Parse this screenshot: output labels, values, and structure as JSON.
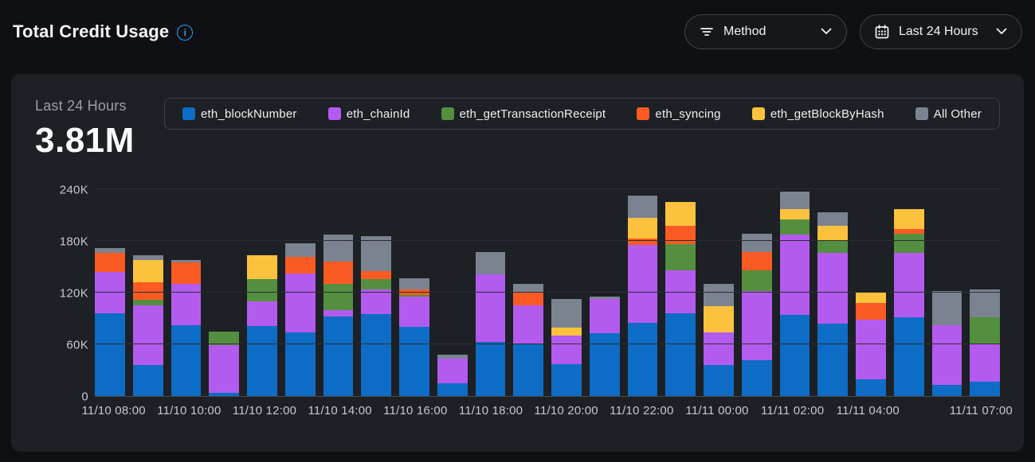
{
  "header": {
    "title": "Total Credit Usage"
  },
  "controls": {
    "method_button": {
      "label": "Method",
      "icon": "filter-icon"
    },
    "range_button": {
      "label": "Last 24 Hours",
      "icon": "calendar-icon"
    }
  },
  "summary": {
    "period": "Last 24 Hours",
    "total": "3.81M"
  },
  "colors": {
    "page_bg": "#0f1013",
    "card_bg": "#1d2025",
    "accent_info": "#2aa3ef",
    "axis_text": "#c6c8cc",
    "muted_text": "#9aa0a8"
  },
  "chart_data": {
    "type": "bar",
    "stacked": true,
    "title": "Total Credit Usage - Last 24 Hours",
    "xlabel": "",
    "ylabel": "",
    "unit": "credits (values in thousands)",
    "ylim": [
      0,
      240000
    ],
    "grid": true,
    "legend_position": "top",
    "yticks": [
      {
        "value": 0,
        "label": "0"
      },
      {
        "value": 60,
        "label": "60K"
      },
      {
        "value": 120,
        "label": "120K"
      },
      {
        "value": 180,
        "label": "180K"
      },
      {
        "value": 240,
        "label": "240K"
      }
    ],
    "xticks": [
      {
        "i": 0,
        "label": "11/10 08:00"
      },
      {
        "i": 2,
        "label": "11/10 10:00"
      },
      {
        "i": 4,
        "label": "11/10 12:00"
      },
      {
        "i": 6,
        "label": "11/10 14:00"
      },
      {
        "i": 8,
        "label": "11/10 16:00"
      },
      {
        "i": 10,
        "label": "11/10 18:00"
      },
      {
        "i": 12,
        "label": "11/10 20:00"
      },
      {
        "i": 14,
        "label": "11/10 22:00"
      },
      {
        "i": 16,
        "label": "11/11 00:00"
      },
      {
        "i": 18,
        "label": "11/11 02:00"
      },
      {
        "i": 20,
        "label": "11/11 04:00"
      },
      {
        "i": 23,
        "label": "11/11 07:00"
      }
    ],
    "n_bars": 24,
    "series": [
      {
        "name": "eth_blockNumber",
        "color": "#0d6cc6",
        "values": [
          96,
          36,
          82,
          4,
          81,
          74,
          92,
          95,
          80,
          15,
          63,
          60,
          37,
          73,
          85,
          96,
          36,
          42,
          94,
          84,
          19,
          91,
          13,
          17
        ]
      },
      {
        "name": "eth_chainId",
        "color": "#b45bef",
        "values": [
          48,
          69,
          48,
          55,
          29,
          68,
          8,
          29,
          35,
          28,
          78,
          45,
          33,
          40,
          90,
          50,
          38,
          80,
          93,
          82,
          70,
          75,
          69,
          44
        ]
      },
      {
        "name": "eth_getTransactionReceipt",
        "color": "#538f3f",
        "values": [
          0,
          7,
          0,
          16,
          26,
          0,
          30,
          12,
          2,
          0,
          0,
          0,
          0,
          0,
          0,
          30,
          0,
          24,
          18,
          14,
          0,
          22,
          0,
          30
        ]
      },
      {
        "name": "eth_syncing",
        "color": "#fb5a23",
        "values": [
          22,
          20,
          25,
          0,
          0,
          20,
          26,
          9,
          7,
          0,
          0,
          15,
          0,
          0,
          8,
          22,
          0,
          21,
          0,
          0,
          19,
          6,
          0,
          0
        ]
      },
      {
        "name": "eth_getBlockByHash",
        "color": "#fdc23d",
        "values": [
          0,
          26,
          0,
          0,
          27,
          0,
          0,
          0,
          0,
          0,
          0,
          0,
          9,
          0,
          24,
          27,
          30,
          0,
          12,
          18,
          13,
          23,
          0,
          0
        ]
      },
      {
        "name": "All Other",
        "color": "#7b8391",
        "values": [
          6,
          5,
          3,
          0,
          0,
          15,
          31,
          41,
          13,
          5,
          26,
          10,
          34,
          2,
          26,
          0,
          26,
          21,
          20,
          15,
          0,
          0,
          40,
          33
        ]
      }
    ]
  }
}
